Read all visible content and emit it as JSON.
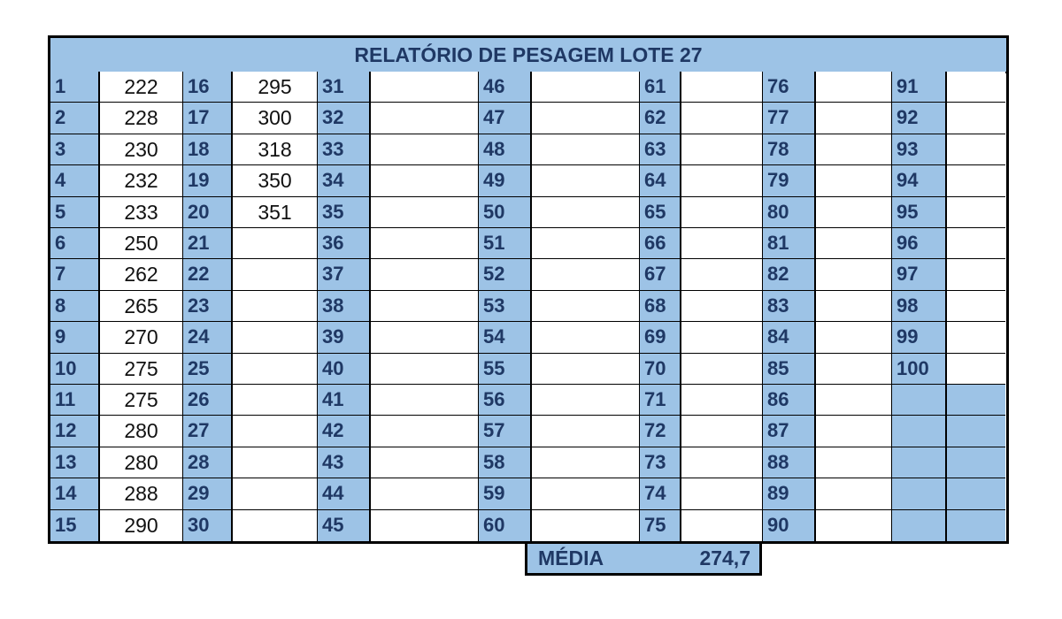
{
  "title": "RELATÓRIO DE PESAGEM LOTE 27",
  "columns": [
    {
      "numbers": [
        "1",
        "2",
        "3",
        "4",
        "5",
        "6",
        "7",
        "8",
        "9",
        "10",
        "11",
        "12",
        "13",
        "14",
        "15"
      ],
      "values": [
        "222",
        "228",
        "230",
        "232",
        "233",
        "250",
        "262",
        "265",
        "270",
        "275",
        "275",
        "280",
        "280",
        "288",
        "290"
      ]
    },
    {
      "numbers": [
        "16",
        "17",
        "18",
        "19",
        "20",
        "21",
        "22",
        "23",
        "24",
        "25",
        "26",
        "27",
        "28",
        "29",
        "30"
      ],
      "values": [
        "295",
        "300",
        "318",
        "350",
        "351",
        "",
        "",
        "",
        "",
        "",
        "",
        "",
        "",
        "",
        ""
      ]
    },
    {
      "numbers": [
        "31",
        "32",
        "33",
        "34",
        "35",
        "36",
        "37",
        "38",
        "39",
        "40",
        "41",
        "42",
        "43",
        "44",
        "45"
      ],
      "values": [
        "",
        "",
        "",
        "",
        "",
        "",
        "",
        "",
        "",
        "",
        "",
        "",
        "",
        "",
        ""
      ]
    },
    {
      "numbers": [
        "46",
        "47",
        "48",
        "49",
        "50",
        "51",
        "52",
        "53",
        "54",
        "55",
        "56",
        "57",
        "58",
        "59",
        "60"
      ],
      "values": [
        "",
        "",
        "",
        "",
        "",
        "",
        "",
        "",
        "",
        "",
        "",
        "",
        "",
        "",
        ""
      ]
    },
    {
      "numbers": [
        "61",
        "62",
        "63",
        "64",
        "65",
        "66",
        "67",
        "68",
        "69",
        "70",
        "71",
        "72",
        "73",
        "74",
        "75"
      ],
      "values": [
        "",
        "",
        "",
        "",
        "",
        "",
        "",
        "",
        "",
        "",
        "",
        "",
        "",
        "",
        ""
      ]
    },
    {
      "numbers": [
        "76",
        "77",
        "78",
        "79",
        "80",
        "81",
        "82",
        "83",
        "84",
        "85",
        "86",
        "87",
        "88",
        "89",
        "90"
      ],
      "values": [
        "",
        "",
        "",
        "",
        "",
        "",
        "",
        "",
        "",
        "",
        "",
        "",
        "",
        "",
        ""
      ]
    },
    {
      "numbers": [
        "91",
        "92",
        "93",
        "94",
        "95",
        "96",
        "97",
        "98",
        "99",
        "100",
        "",
        "",
        "",
        "",
        ""
      ],
      "values": [
        "",
        "",
        "",
        "",
        "",
        "",
        "",
        "",
        "",
        "",
        "",
        "",
        "",
        "",
        ""
      ]
    }
  ],
  "media": {
    "label": "MÉDIA",
    "value": "274,7"
  },
  "colors": {
    "header_fill": "#9dc3e6",
    "header_text": "#1f3864",
    "border": "#000000"
  }
}
